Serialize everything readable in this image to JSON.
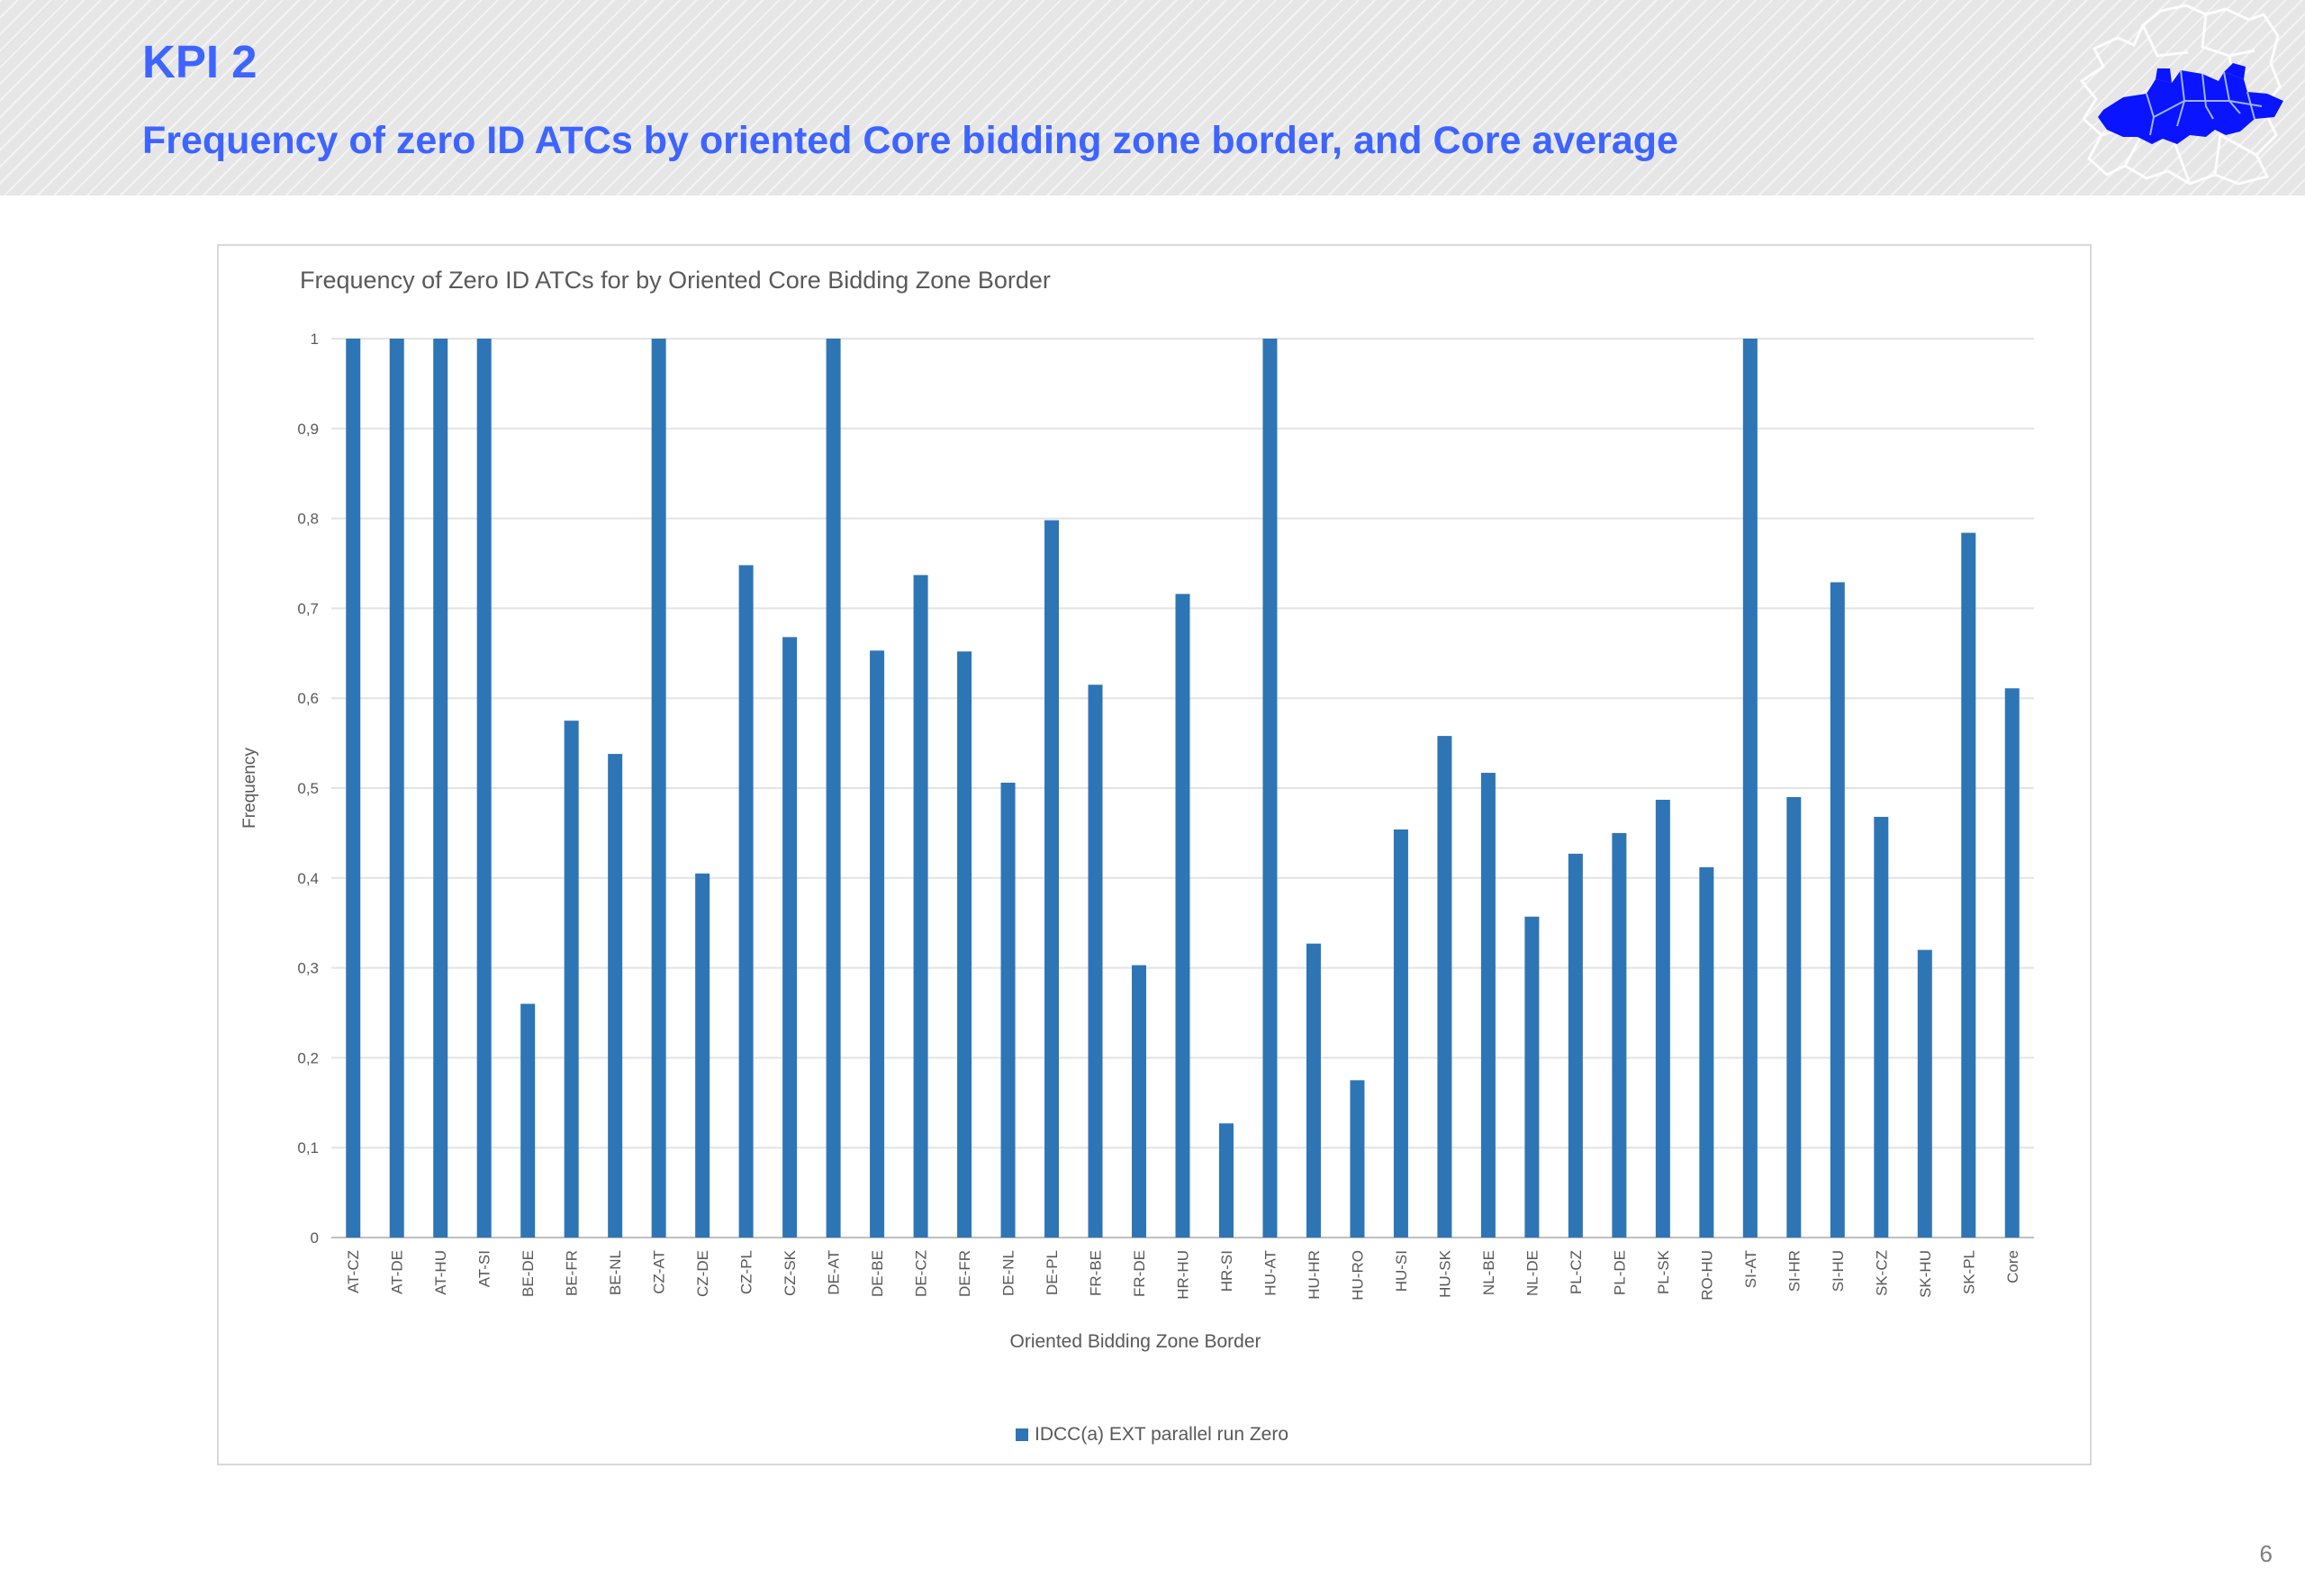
{
  "slide": {
    "title": "KPI 2",
    "subtitle": "Frequency of zero ID ATCs by oriented Core bidding zone border, and Core average",
    "page_number": "6",
    "logo_icon": "core-region-map-icon",
    "accent_color": "#3e64ff"
  },
  "chart_data": {
    "type": "bar",
    "title": "Frequency of Zero ID ATCs for by Oriented Core Bidding Zone Border",
    "xlabel": "Oriented Bidding Zone Border",
    "ylabel": "Frequency",
    "ylim": [
      0,
      1
    ],
    "yticks": [
      "0",
      "0,1",
      "0,2",
      "0,3",
      "0,4",
      "0,5",
      "0,6",
      "0,7",
      "0,8",
      "0,9",
      "1"
    ],
    "grid": true,
    "legend_position": "bottom",
    "bar_color": "#2e75b6",
    "categories": [
      "AT-CZ",
      "AT-DE",
      "AT-HU",
      "AT-SI",
      "BE-DE",
      "BE-FR",
      "BE-NL",
      "CZ-AT",
      "CZ-DE",
      "CZ-PL",
      "CZ-SK",
      "DE-AT",
      "DE-BE",
      "DE-CZ",
      "DE-FR",
      "DE-NL",
      "DE-PL",
      "FR-BE",
      "FR-DE",
      "HR-HU",
      "HR-SI",
      "HU-AT",
      "HU-HR",
      "HU-RO",
      "HU-SI",
      "HU-SK",
      "NL-BE",
      "NL-DE",
      "PL-CZ",
      "PL-DE",
      "PL-SK",
      "RO-HU",
      "SI-AT",
      "SI-HR",
      "SI-HU",
      "SK-CZ",
      "SK-HU",
      "SK-PL",
      "Core"
    ],
    "series": [
      {
        "name": "IDCC(a) EXT parallel run Zero",
        "values": [
          1.0,
          1.0,
          1.0,
          1.0,
          0.26,
          0.575,
          0.538,
          1.0,
          0.405,
          0.748,
          0.668,
          1.0,
          0.653,
          0.737,
          0.652,
          0.506,
          0.798,
          0.615,
          0.303,
          0.716,
          0.127,
          1.0,
          0.327,
          0.175,
          0.454,
          0.558,
          0.517,
          0.357,
          0.427,
          0.45,
          0.487,
          0.412,
          1.0,
          0.49,
          0.729,
          0.468,
          0.32,
          0.784,
          0.611
        ]
      }
    ]
  }
}
